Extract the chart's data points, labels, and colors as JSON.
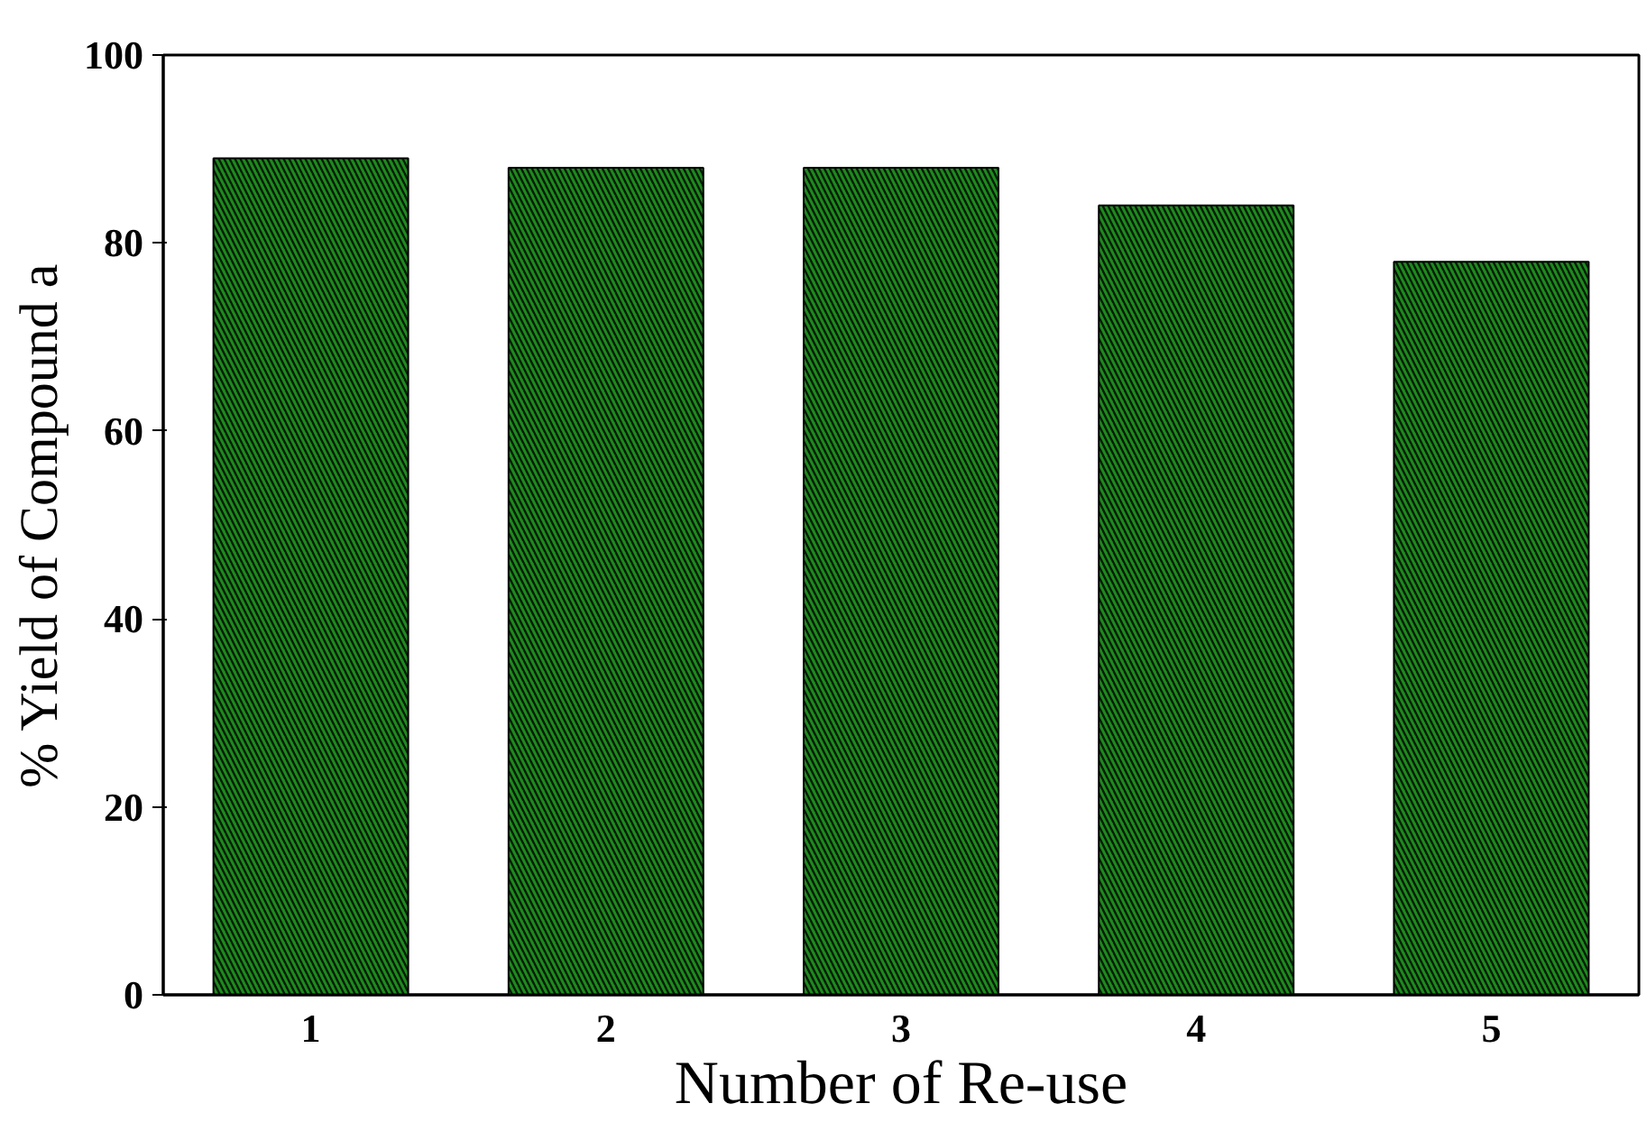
{
  "chart_data": {
    "type": "bar",
    "xlabel": "Number of Re-use",
    "ylabel": "% Yield of Compound a",
    "categories": [
      "1",
      "2",
      "3",
      "4",
      "5"
    ],
    "values": [
      89,
      88,
      88,
      84,
      78
    ],
    "color": "#1e8a1e",
    "ylim": [
      0,
      100
    ],
    "yticks": [
      0,
      20,
      40,
      60,
      80,
      100
    ],
    "grid": false
  }
}
